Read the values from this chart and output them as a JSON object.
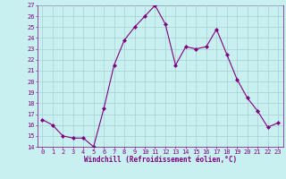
{
  "x": [
    0,
    1,
    2,
    3,
    4,
    5,
    6,
    7,
    8,
    9,
    10,
    11,
    12,
    13,
    14,
    15,
    16,
    17,
    18,
    19,
    20,
    21,
    22,
    23
  ],
  "y": [
    16.5,
    16.0,
    15.0,
    14.8,
    14.8,
    14.0,
    17.5,
    21.5,
    23.8,
    25.0,
    26.0,
    27.0,
    25.3,
    21.5,
    23.2,
    23.0,
    23.2,
    24.8,
    22.5,
    20.2,
    18.5,
    17.3,
    15.8,
    16.2
  ],
  "line_color": "#800080",
  "marker": "D",
  "marker_size": 2.0,
  "bg_color": "#c8f0f0",
  "grid_color": "#a8d0d0",
  "xlabel": "Windchill (Refroidissement éolien,°C)",
  "xlabel_color": "#800080",
  "tick_color": "#800080",
  "ylim": [
    14,
    27
  ],
  "yticks": [
    14,
    15,
    16,
    17,
    18,
    19,
    20,
    21,
    22,
    23,
    24,
    25,
    26,
    27
  ],
  "xticks": [
    0,
    1,
    2,
    3,
    4,
    5,
    6,
    7,
    8,
    9,
    10,
    11,
    12,
    13,
    14,
    15,
    16,
    17,
    18,
    19,
    20,
    21,
    22,
    23
  ],
  "tick_fontsize": 5.0,
  "xlabel_fontsize": 5.5,
  "linewidth": 0.8
}
